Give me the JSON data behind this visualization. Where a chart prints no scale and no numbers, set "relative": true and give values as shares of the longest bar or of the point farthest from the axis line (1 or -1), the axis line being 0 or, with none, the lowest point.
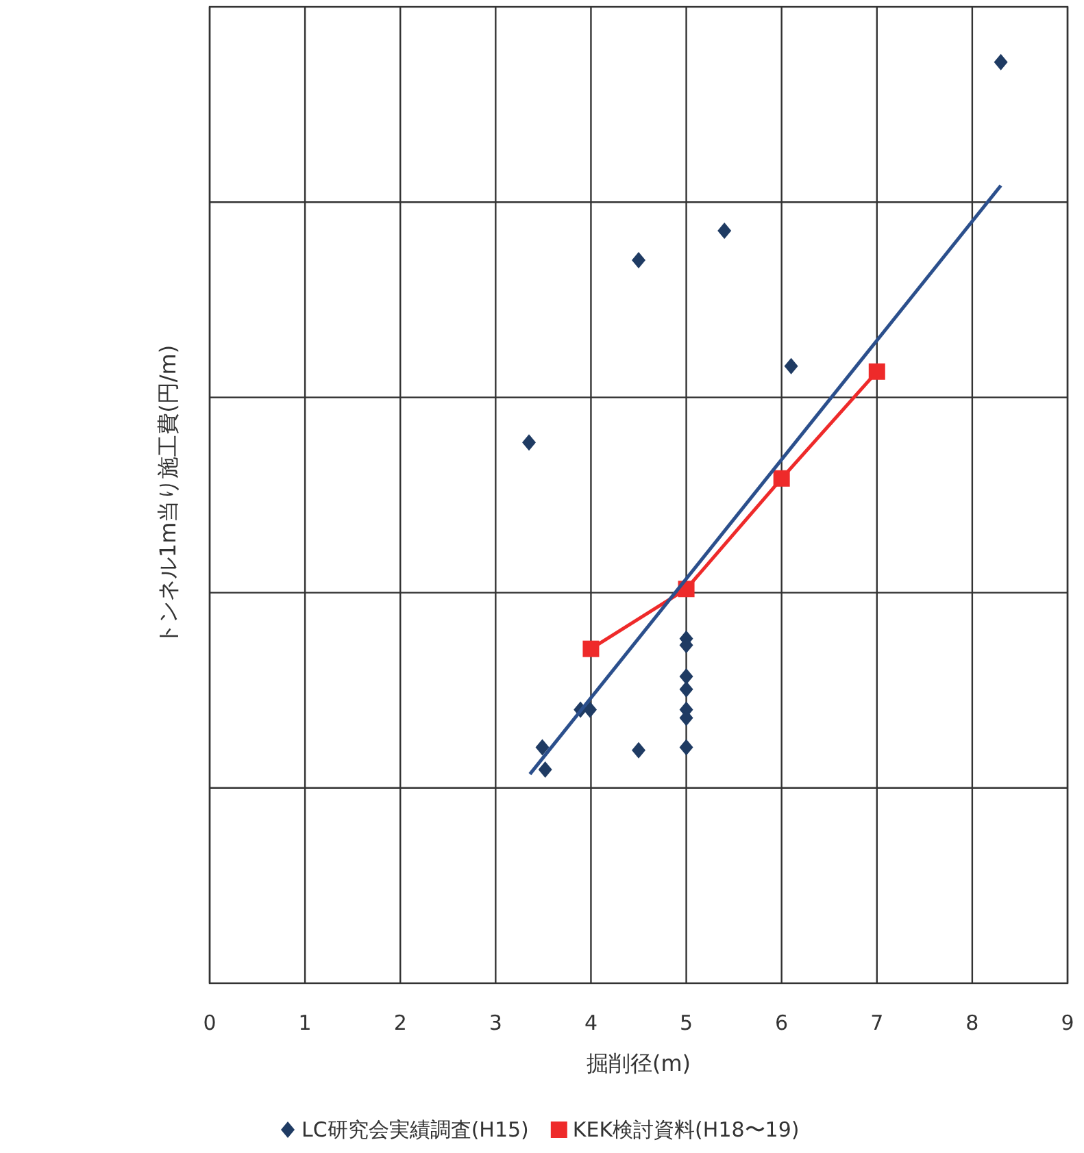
{
  "chart_data": {
    "type": "scatter",
    "xlabel": "掘削径(m)",
    "ylabel": "トンネル1m当り施工費(円/m)",
    "relative": true,
    "xlim": [
      0,
      9
    ],
    "xticks": [
      0,
      1,
      2,
      3,
      4,
      5,
      6,
      7,
      8,
      9
    ],
    "grid": true,
    "legend": "bottom",
    "series": [
      {
        "name": "LC研究会実績調査(H15)",
        "marker": "diamond",
        "color": "#1f3b63",
        "x": [
          8.3,
          4.5,
          5.4,
          6.1,
          3.35,
          5.0,
          5.0,
          5.0,
          5.0,
          5.0,
          5.0,
          5.0,
          3.89,
          3.99,
          3.49,
          3.52,
          4.5
        ],
        "values": [
          1,
          0.785,
          0.817,
          0.67,
          0.587,
          0.374,
          0.367,
          0.333,
          0.319,
          0.297,
          0.288,
          0.256,
          0.297,
          0.297,
          0.256,
          0.232,
          0.253
        ]
      },
      {
        "name": "KEK検討資料(H18〜19)",
        "type": "line",
        "marker": "square",
        "color": "#ee2a2a",
        "x": [
          4,
          5,
          6,
          7
        ],
        "values": [
          0.363,
          0.428,
          0.548,
          0.664
        ]
      },
      {
        "type": "line",
        "marker": "none",
        "color": "#2b4f8c",
        "x": [
          3.36,
          8.3
        ],
        "values": [
          0.227,
          0.866
        ]
      }
    ]
  }
}
